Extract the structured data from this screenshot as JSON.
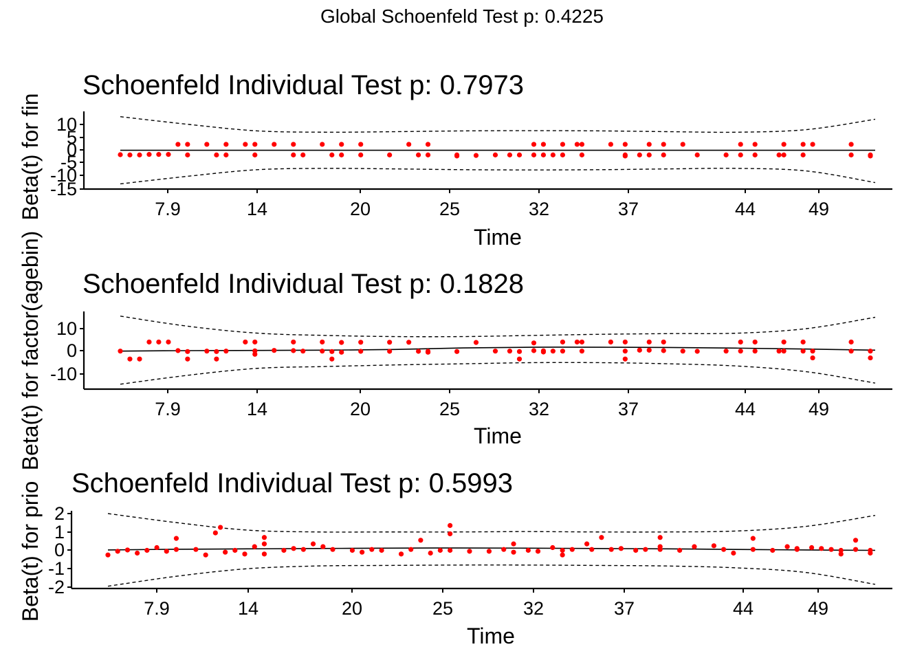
{
  "global_title": "Global Schoenfeld Test p: 0.4225",
  "chart_data": [
    {
      "type": "scatter",
      "title": "Schoenfeld Individual Test p: 0.7973",
      "xlabel": "Time",
      "ylabel": "Beta(t) for fin",
      "x_ticks": [
        "7.9",
        "14",
        "20",
        "25",
        "32",
        "37",
        "44",
        "49"
      ],
      "y_ticks": [
        "10",
        "5",
        "0",
        "-5",
        "-10",
        "-15"
      ],
      "ylim": [
        -15,
        13
      ],
      "point_color": "#ff0000",
      "smooth": [
        0,
        0,
        0,
        0,
        0,
        0,
        0,
        0,
        0,
        0,
        0,
        0
      ],
      "band_upper": [
        13,
        10,
        7.5,
        7,
        7.2,
        7.5,
        7.6,
        7.5,
        7.2,
        7.0,
        8.0,
        12
      ],
      "band_lower": [
        -13,
        -10,
        -7.5,
        -7,
        -7.2,
        -7.5,
        -7.6,
        -7.5,
        -7.2,
        -7.0,
        -8.0,
        -12.5
      ],
      "points": [
        [
          0.0,
          -1.7
        ],
        [
          0.0127,
          -1.8
        ],
        [
          0.0255,
          -1.8
        ],
        [
          0.0382,
          -1.6
        ],
        [
          0.0509,
          -1.6
        ],
        [
          0.0637,
          -1.6
        ],
        [
          0.0764,
          2.3
        ],
        [
          0.0891,
          2.3
        ],
        [
          0.0891,
          -1.8
        ],
        [
          0.1146,
          2.3
        ],
        [
          0.1274,
          -1.8
        ],
        [
          0.1401,
          2.3
        ],
        [
          0.1401,
          -1.8
        ],
        [
          0.1656,
          2.3
        ],
        [
          0.1783,
          -1.8
        ],
        [
          0.1783,
          2.3
        ],
        [
          0.2038,
          2.3
        ],
        [
          0.2293,
          2.3
        ],
        [
          0.2293,
          -1.8
        ],
        [
          0.242,
          -1.8
        ],
        [
          0.2675,
          2.3
        ],
        [
          0.2803,
          -1.8
        ],
        [
          0.293,
          2.3
        ],
        [
          0.293,
          -1.8
        ],
        [
          0.3185,
          2.3
        ],
        [
          0.3185,
          -1.8
        ],
        [
          0.3567,
          -1.8
        ],
        [
          0.3822,
          2.3
        ],
        [
          0.3949,
          -1.8
        ],
        [
          0.4076,
          2.3
        ],
        [
          0.4076,
          -1.8
        ],
        [
          0.4459,
          -1.8
        ],
        [
          0.4459,
          -2.2
        ],
        [
          0.4713,
          -2.0
        ],
        [
          0.4968,
          -1.8
        ],
        [
          0.5159,
          -1.8
        ],
        [
          0.5287,
          -1.8
        ],
        [
          0.5478,
          2.3
        ],
        [
          0.5478,
          -1.8
        ],
        [
          0.5605,
          -1.8
        ],
        [
          0.5605,
          2.3
        ],
        [
          0.5732,
          -1.8
        ],
        [
          0.586,
          2.3
        ],
        [
          0.586,
          -1.8
        ],
        [
          0.6051,
          2.3
        ],
        [
          0.6115,
          2.3
        ],
        [
          0.6115,
          -1.8
        ],
        [
          0.6497,
          2.3
        ],
        [
          0.6688,
          2.3
        ],
        [
          0.6688,
          -1.8
        ],
        [
          0.6688,
          -2.2
        ],
        [
          0.6879,
          -1.8
        ],
        [
          0.7006,
          -1.8
        ],
        [
          0.7006,
          2.3
        ],
        [
          0.7197,
          2.3
        ],
        [
          0.7197,
          -1.8
        ],
        [
          0.7452,
          2.3
        ],
        [
          0.7643,
          -1.8
        ],
        [
          0.8025,
          -1.8
        ],
        [
          0.8217,
          2.3
        ],
        [
          0.8217,
          -1.8
        ],
        [
          0.8408,
          2.3
        ],
        [
          0.8408,
          -1.8
        ],
        [
          0.8726,
          -1.8
        ],
        [
          0.879,
          2.3
        ],
        [
          0.879,
          -1.8
        ],
        [
          0.9045,
          -1.8
        ],
        [
          0.9045,
          2.3
        ],
        [
          0.9172,
          2.3
        ],
        [
          0.9682,
          2.3
        ],
        [
          0.9682,
          -1.8
        ],
        [
          0.9936,
          -1.8
        ],
        [
          0.9936,
          -2.2
        ]
      ]
    },
    {
      "type": "scatter",
      "title": "Schoenfeld Individual Test p: 0.1828",
      "xlabel": "Time",
      "ylabel": "Beta(t) for factor(agebin)",
      "x_ticks": [
        "7.9",
        "14",
        "20",
        "25",
        "32",
        "37",
        "44",
        "49"
      ],
      "y_ticks": [
        "10",
        "0",
        "-10"
      ],
      "ylim": [
        -17,
        17
      ],
      "point_color": "#ff0000",
      "smooth": [
        0.1,
        0.3,
        0.4,
        0.5,
        0.8,
        1.5,
        1.8,
        1.8,
        1.7,
        1.4,
        1.0,
        0.5
      ],
      "band_upper": [
        15.5,
        11,
        8,
        7,
        6.5,
        6.5,
        7,
        7.5,
        7.8,
        8,
        10,
        15
      ],
      "band_lower": [
        -14.5,
        -10.5,
        -7.5,
        -6.7,
        -6,
        -5.5,
        -5,
        -5,
        -5.5,
        -6.5,
        -9,
        -14
      ],
      "points": [
        [
          0.0,
          0.1
        ],
        [
          0.0127,
          -3.4
        ],
        [
          0.0255,
          -3.4
        ],
        [
          0.0382,
          4.1
        ],
        [
          0.0509,
          4.1
        ],
        [
          0.0637,
          4.1
        ],
        [
          0.0764,
          0.3
        ],
        [
          0.0891,
          -3.4
        ],
        [
          0.0891,
          -0.1
        ],
        [
          0.1146,
          0.1
        ],
        [
          0.1274,
          -3.4
        ],
        [
          0.1274,
          -0.1
        ],
        [
          0.1401,
          0.1
        ],
        [
          0.1656,
          4.1
        ],
        [
          0.1783,
          0.2
        ],
        [
          0.1783,
          -1.3
        ],
        [
          0.1783,
          4.1
        ],
        [
          0.2038,
          0.4
        ],
        [
          0.2293,
          4.1
        ],
        [
          0.2293,
          0.3
        ],
        [
          0.242,
          0.1
        ],
        [
          0.2675,
          4.1
        ],
        [
          0.2675,
          0.1
        ],
        [
          0.2803,
          -3.4
        ],
        [
          0.2803,
          -0.1
        ],
        [
          0.293,
          3.9
        ],
        [
          0.293,
          -0.4
        ],
        [
          0.3185,
          4.0
        ],
        [
          0.3185,
          0.0
        ],
        [
          0.3567,
          4.0
        ],
        [
          0.3567,
          0.0
        ],
        [
          0.3822,
          4.0
        ],
        [
          0.3949,
          0.0
        ],
        [
          0.4076,
          0.0
        ],
        [
          0.4076,
          -0.4
        ],
        [
          0.4459,
          -0.1
        ],
        [
          0.4713,
          3.9
        ],
        [
          0.4968,
          0.1
        ],
        [
          0.5159,
          0.1
        ],
        [
          0.5287,
          -0.1
        ],
        [
          0.5287,
          -3.4
        ],
        [
          0.5478,
          0.3
        ],
        [
          0.5478,
          3.7
        ],
        [
          0.5605,
          0.2
        ],
        [
          0.5605,
          -0.3
        ],
        [
          0.5732,
          0.1
        ],
        [
          0.586,
          4.1
        ],
        [
          0.586,
          0.1
        ],
        [
          0.6051,
          4.1
        ],
        [
          0.6115,
          4.1
        ],
        [
          0.6115,
          0.1
        ],
        [
          0.6497,
          4.1
        ],
        [
          0.6688,
          0.1
        ],
        [
          0.6688,
          -3.4
        ],
        [
          0.6688,
          4.1
        ],
        [
          0.6879,
          0.5
        ],
        [
          0.7006,
          0.5
        ],
        [
          0.7006,
          4.1
        ],
        [
          0.7197,
          4.1
        ],
        [
          0.7197,
          0.3
        ],
        [
          0.7452,
          0.1
        ],
        [
          0.7643,
          0.0
        ],
        [
          0.8025,
          0.1
        ],
        [
          0.8217,
          4.1
        ],
        [
          0.8217,
          0.1
        ],
        [
          0.8408,
          4.1
        ],
        [
          0.8408,
          0.1
        ],
        [
          0.8726,
          0.1
        ],
        [
          0.879,
          4.1
        ],
        [
          0.879,
          0.1
        ],
        [
          0.9045,
          0.1
        ],
        [
          0.9045,
          4.1
        ],
        [
          0.9172,
          0.1
        ],
        [
          0.9172,
          -2.9
        ],
        [
          0.9682,
          4.1
        ],
        [
          0.9682,
          0.1
        ],
        [
          0.9936,
          0.1
        ],
        [
          0.9936,
          -2.9
        ]
      ]
    },
    {
      "type": "scatter",
      "title": "Schoenfeld Individual Test p: 0.5993",
      "xlabel": "Time",
      "ylabel": "Beta(t) for prio",
      "x_ticks": [
        "7.9",
        "14",
        "20",
        "25",
        "32",
        "37",
        "44",
        "49"
      ],
      "y_ticks": [
        "2",
        "1",
        "0",
        "-1",
        "-2"
      ],
      "ylim": [
        -2.1,
        2.2
      ],
      "point_color": "#ff0000",
      "smooth": [
        0.02,
        0.06,
        0.08,
        0.1,
        0.12,
        0.13,
        0.12,
        0.1,
        0.08,
        0.05,
        0.02,
        0.0
      ],
      "band_upper": [
        2.0,
        1.5,
        1.1,
        1.0,
        1.0,
        1.0,
        1.02,
        1.0,
        1.0,
        1.05,
        1.3,
        1.9
      ],
      "band_lower": [
        -1.95,
        -1.4,
        -1.0,
        -0.85,
        -0.82,
        -0.8,
        -0.8,
        -0.82,
        -0.85,
        -0.95,
        -1.2,
        -1.85
      ],
      "points": [
        [
          0.0,
          -0.25
        ],
        [
          0.0127,
          -0.05
        ],
        [
          0.0255,
          0.02
        ],
        [
          0.0382,
          -0.15
        ],
        [
          0.0509,
          0.0
        ],
        [
          0.0637,
          0.15
        ],
        [
          0.0764,
          -0.05
        ],
        [
          0.0891,
          0.65
        ],
        [
          0.0891,
          0.05
        ],
        [
          0.1146,
          0.05
        ],
        [
          0.1274,
          -0.25
        ],
        [
          0.1401,
          0.95
        ],
        [
          0.1466,
          1.25
        ],
        [
          0.1529,
          -0.1
        ],
        [
          0.1656,
          0.0
        ],
        [
          0.1783,
          -0.2
        ],
        [
          0.1911,
          0.2
        ],
        [
          0.2038,
          0.7
        ],
        [
          0.2038,
          0.35
        ],
        [
          0.2038,
          -0.2
        ],
        [
          0.2293,
          0.0
        ],
        [
          0.242,
          0.1
        ],
        [
          0.2548,
          0.05
        ],
        [
          0.2675,
          0.35
        ],
        [
          0.2803,
          0.2
        ],
        [
          0.293,
          0.05
        ],
        [
          0.3185,
          0.0
        ],
        [
          0.3312,
          -0.1
        ],
        [
          0.3439,
          0.05
        ],
        [
          0.3567,
          0.0
        ],
        [
          0.3822,
          -0.2
        ],
        [
          0.3949,
          0.05
        ],
        [
          0.4076,
          0.55
        ],
        [
          0.4204,
          -0.15
        ],
        [
          0.4331,
          0.0
        ],
        [
          0.4459,
          1.35
        ],
        [
          0.4459,
          0.0
        ],
        [
          0.4459,
          0.9
        ],
        [
          0.4713,
          -0.05
        ],
        [
          0.4968,
          -0.05
        ],
        [
          0.5159,
          0.05
        ],
        [
          0.5287,
          0.35
        ],
        [
          0.5287,
          -0.1
        ],
        [
          0.5478,
          0.0
        ],
        [
          0.5605,
          -0.05
        ],
        [
          0.5796,
          0.15
        ],
        [
          0.5924,
          0.0
        ],
        [
          0.5924,
          -0.25
        ],
        [
          0.6051,
          0.05
        ],
        [
          0.6242,
          0.35
        ],
        [
          0.6306,
          0.05
        ],
        [
          0.6433,
          0.7
        ],
        [
          0.6561,
          0.05
        ],
        [
          0.6688,
          0.1
        ],
        [
          0.6879,
          0.0
        ],
        [
          0.7006,
          0.05
        ],
        [
          0.7197,
          0.7
        ],
        [
          0.7197,
          0.2
        ],
        [
          0.7197,
          0.05
        ],
        [
          0.7452,
          0.0
        ],
        [
          0.7643,
          0.2
        ],
        [
          0.7898,
          0.25
        ],
        [
          0.8025,
          0.05
        ],
        [
          0.8153,
          -0.15
        ],
        [
          0.8408,
          0.65
        ],
        [
          0.8408,
          0.05
        ],
        [
          0.8663,
          0.0
        ],
        [
          0.8854,
          0.2
        ],
        [
          0.8981,
          0.1
        ],
        [
          0.8981,
          0.05
        ],
        [
          0.9172,
          0.15
        ],
        [
          0.9299,
          0.1
        ],
        [
          0.9427,
          0.05
        ],
        [
          0.9554,
          0.0
        ],
        [
          0.9554,
          -0.2
        ],
        [
          0.9745,
          0.55
        ],
        [
          0.9745,
          0.05
        ],
        [
          0.9936,
          0.0
        ],
        [
          0.9936,
          -0.15
        ]
      ]
    }
  ]
}
